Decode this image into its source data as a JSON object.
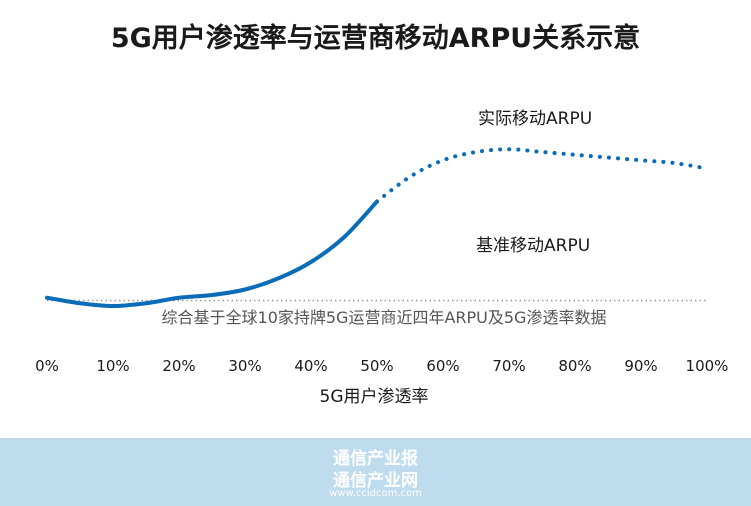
{
  "chart_data": {
    "type": "line",
    "title": "5G用户渗透率与运营商移动ARPU关系示意",
    "xlabel": "5G用户渗透率",
    "ylabel": "",
    "x_ticks": [
      "0%",
      "10%",
      "20%",
      "30%",
      "40%",
      "50%",
      "60%",
      "70%",
      "80%",
      "90%",
      "100%"
    ],
    "xlim": [
      0,
      100
    ],
    "ylim": [
      0,
      100
    ],
    "grid": false,
    "series": [
      {
        "name": "实际移动ARPU",
        "color": "#0b6db7",
        "solid": {
          "x": [
            0,
            5,
            10,
            15,
            20,
            25,
            30,
            35,
            40,
            45,
            50
          ],
          "y": [
            23,
            21,
            20,
            21,
            23,
            24,
            26,
            30,
            36,
            45,
            58
          ]
        },
        "dotted": {
          "x": [
            50,
            55,
            60,
            65,
            70,
            75,
            80,
            85,
            90,
            95,
            100
          ],
          "y": [
            58,
            67,
            73,
            76,
            77,
            76,
            75,
            74,
            73,
            72,
            70
          ]
        }
      },
      {
        "name": "基准移动ARPU",
        "color": "#999999",
        "line_style": "dotted",
        "x": [
          0,
          100
        ],
        "y": [
          22,
          22
        ]
      }
    ],
    "annotations": {
      "series1_label": "实际移动ARPU",
      "series2_label": "基准移动ARPU",
      "note": "综合基于全球10家持牌5G运营商近四年ARPU及5G渗透率数据"
    }
  },
  "footer": {
    "line1": "通信产业报",
    "line2": "通信产业网",
    "url": "www.ccidcom.com"
  }
}
